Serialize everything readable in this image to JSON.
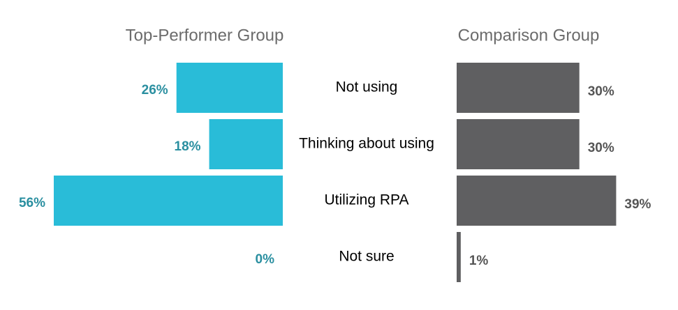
{
  "chart_data": {
    "type": "bar",
    "categories": [
      "Not using",
      "Thinking about using",
      "Utilizing RPA",
      "Not sure"
    ],
    "series": [
      {
        "name": "Top-Performer Group",
        "color": "#29bcd8",
        "values": [
          26,
          18,
          56,
          0
        ],
        "value_labels": [
          "26%",
          "18%",
          "56%",
          "0%"
        ]
      },
      {
        "name": "Comparison Group",
        "color": "#5f5f61",
        "values": [
          30,
          30,
          39,
          1
        ],
        "value_labels": [
          "30%",
          "30%",
          "39%",
          "1%"
        ]
      }
    ],
    "xlim": [
      0,
      56
    ]
  }
}
